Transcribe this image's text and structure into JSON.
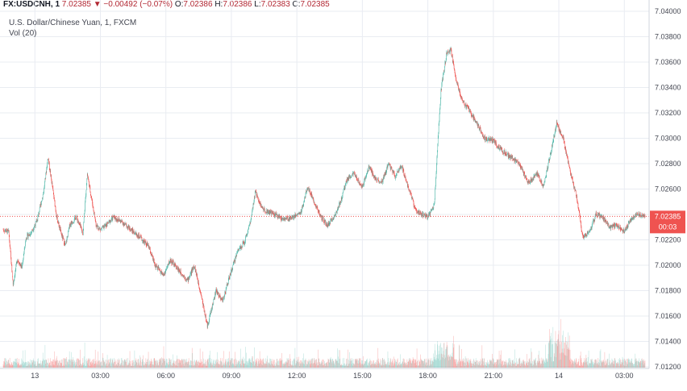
{
  "header": {
    "symbol": "FX:USDCNH, 1",
    "last": "7.02385",
    "change_arrow": "▼",
    "change": "−0.00492 (−0.07%)",
    "open_label": "O:",
    "open": "7.02386",
    "high_label": "H:",
    "high": "7.02386",
    "low_label": "L:",
    "low": "7.02383",
    "close_label": "C:",
    "close": "7.02385"
  },
  "legend": {
    "title": "U.S. Dollar/Chinese Yuan, 1, FXCM",
    "volume": "Vol (20)"
  },
  "colors": {
    "up": "#53b9ab",
    "down": "#ef5350",
    "price_tag": "#ef5350",
    "grid": "#e9ecf2"
  },
  "price_tag": {
    "price": "7.02385",
    "countdown": "00:03"
  },
  "chart_data": {
    "type": "candlestick",
    "y_ticks": [
      "7.04000",
      "7.03800",
      "7.03600",
      "7.03400",
      "7.03200",
      "7.03000",
      "7.02800",
      "7.02600",
      "7.02400",
      "7.02200",
      "7.02000",
      "7.01800",
      "7.01600",
      "7.01400",
      "7.01200"
    ],
    "ylim": [
      7.012,
      7.04
    ],
    "x_ticks": [
      "13",
      "03:00",
      "06:00",
      "09:00",
      "12:00",
      "15:00",
      "18:00",
      "21:00",
      "14",
      "03:00"
    ],
    "x_tick_hours": [
      0,
      3,
      6,
      9,
      12,
      15,
      18,
      21,
      24,
      27
    ],
    "x_range_hours": [
      -1.45,
      27.95
    ],
    "last_price": 7.02385,
    "price_path": [
      [
        -1.45,
        7.0228
      ],
      [
        -1.2,
        7.0226
      ],
      [
        -1.0,
        7.0185
      ],
      [
        -0.8,
        7.0205
      ],
      [
        -0.6,
        7.0198
      ],
      [
        -0.4,
        7.0222
      ],
      [
        -0.2,
        7.0225
      ],
      [
        0.1,
        7.0235
      ],
      [
        0.4,
        7.0258
      ],
      [
        0.6,
        7.0285
      ],
      [
        0.8,
        7.0262
      ],
      [
        1.0,
        7.0238
      ],
      [
        1.2,
        7.0225
      ],
      [
        1.4,
        7.0215
      ],
      [
        1.6,
        7.0232
      ],
      [
        1.9,
        7.0238
      ],
      [
        2.2,
        7.0225
      ],
      [
        2.4,
        7.0272
      ],
      [
        2.6,
        7.0252
      ],
      [
        2.8,
        7.0232
      ],
      [
        3.0,
        7.0228
      ],
      [
        3.3,
        7.0232
      ],
      [
        3.6,
        7.0238
      ],
      [
        4.0,
        7.0234
      ],
      [
        4.4,
        7.0228
      ],
      [
        4.8,
        7.0222
      ],
      [
        5.2,
        7.0215
      ],
      [
        5.5,
        7.02
      ],
      [
        5.9,
        7.0192
      ],
      [
        6.2,
        7.0204
      ],
      [
        6.6,
        7.0196
      ],
      [
        7.0,
        7.0188
      ],
      [
        7.3,
        7.02
      ],
      [
        7.6,
        7.0178
      ],
      [
        7.9,
        7.0152
      ],
      [
        8.3,
        7.018
      ],
      [
        8.6,
        7.0172
      ],
      [
        8.9,
        7.019
      ],
      [
        9.3,
        7.0212
      ],
      [
        9.6,
        7.0218
      ],
      [
        9.9,
        7.0236
      ],
      [
        10.1,
        7.0258
      ],
      [
        10.4,
        7.0245
      ],
      [
        10.7,
        7.0242
      ],
      [
        11.0,
        7.024
      ],
      [
        11.4,
        7.0236
      ],
      [
        11.8,
        7.0238
      ],
      [
        12.2,
        7.0242
      ],
      [
        12.5,
        7.0262
      ],
      [
        12.8,
        7.025
      ],
      [
        13.1,
        7.0238
      ],
      [
        13.4,
        7.0231
      ],
      [
        13.7,
        7.0238
      ],
      [
        14.0,
        7.025
      ],
      [
        14.3,
        7.0268
      ],
      [
        14.6,
        7.0272
      ],
      [
        15.0,
        7.0262
      ],
      [
        15.3,
        7.0278
      ],
      [
        15.6,
        7.0268
      ],
      [
        15.9,
        7.0265
      ],
      [
        16.2,
        7.028
      ],
      [
        16.5,
        7.027
      ],
      [
        16.8,
        7.0278
      ],
      [
        17.1,
        7.0262
      ],
      [
        17.4,
        7.0245
      ],
      [
        17.7,
        7.024
      ],
      [
        18.0,
        7.0238
      ],
      [
        18.3,
        7.0248
      ],
      [
        18.45,
        7.0296
      ],
      [
        18.6,
        7.0338
      ],
      [
        18.85,
        7.0366
      ],
      [
        19.05,
        7.037
      ],
      [
        19.3,
        7.0346
      ],
      [
        19.6,
        7.0328
      ],
      [
        19.9,
        7.0322
      ],
      [
        20.3,
        7.031
      ],
      [
        20.6,
        7.03
      ],
      [
        21.0,
        7.0298
      ],
      [
        21.4,
        7.029
      ],
      [
        21.8,
        7.0285
      ],
      [
        22.2,
        7.028
      ],
      [
        22.6,
        7.0265
      ],
      [
        23.0,
        7.0272
      ],
      [
        23.3,
        7.0262
      ],
      [
        23.6,
        7.0286
      ],
      [
        23.9,
        7.0312
      ],
      [
        24.2,
        7.03
      ],
      [
        24.5,
        7.0275
      ],
      [
        24.8,
        7.0255
      ],
      [
        25.1,
        7.0222
      ],
      [
        25.4,
        7.0226
      ],
      [
        25.7,
        7.024
      ],
      [
        26.0,
        7.0238
      ],
      [
        26.3,
        7.023
      ],
      [
        26.7,
        7.0232
      ],
      [
        27.0,
        7.0226
      ],
      [
        27.3,
        7.0236
      ],
      [
        27.6,
        7.024
      ],
      [
        27.95,
        7.02385
      ]
    ]
  }
}
